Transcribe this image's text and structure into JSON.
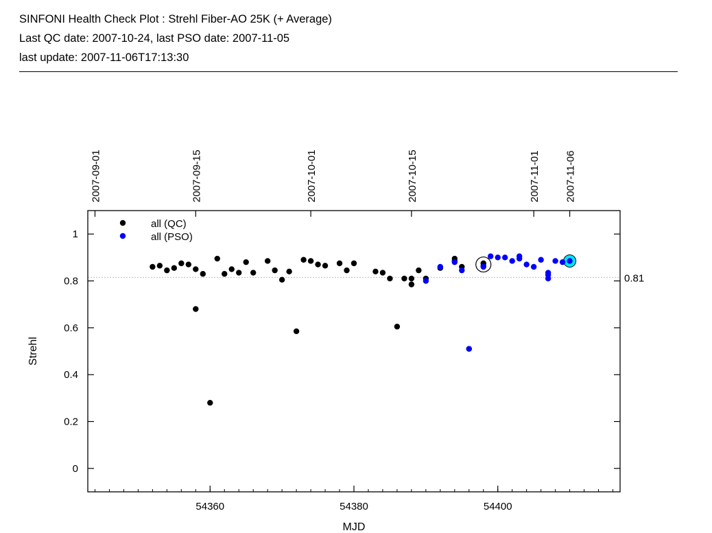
{
  "header": {
    "title": "SINFONI Health Check Plot : Strehl Fiber-AO 25K (+ Average)",
    "qc_line": "Last QC date: 2007-10-24, last PSO date: 2007-11-05",
    "update_line": "last update: 2007-11-06T17:13:30"
  },
  "chart_data": {
    "type": "scatter",
    "xlabel": "MJD",
    "ylabel": "Strehl",
    "xlim": [
      54343,
      54417
    ],
    "ylim": [
      -0.1,
      1.1
    ],
    "x_ticks": [
      54360,
      54380,
      54400
    ],
    "y_ticks": [
      0,
      0.2,
      0.4,
      0.6,
      0.8,
      1
    ],
    "y_tick_labels": [
      "0",
      "0.2",
      "0.4",
      "0.6",
      "0.8",
      "1"
    ],
    "date_ticks": [
      {
        "label": "2007-09-01",
        "mjd": 54344
      },
      {
        "label": "2007-09-15",
        "mjd": 54358
      },
      {
        "label": "2007-10-01",
        "mjd": 54374
      },
      {
        "label": "2007-10-15",
        "mjd": 54388
      },
      {
        "label": "2007-11-01",
        "mjd": 54405
      },
      {
        "label": "2007-11-06",
        "mjd": 54410
      }
    ],
    "average": {
      "value": 0.815,
      "label": "0.81"
    },
    "legend": {
      "position": "top-left"
    },
    "series": [
      {
        "name": "all (QC)",
        "color": "#000000",
        "points": [
          [
            54352,
            0.86
          ],
          [
            54353,
            0.865
          ],
          [
            54354,
            0.845
          ],
          [
            54355,
            0.855
          ],
          [
            54356,
            0.875
          ],
          [
            54357,
            0.87
          ],
          [
            54358,
            0.85
          ],
          [
            54358,
            0.68
          ],
          [
            54359,
            0.83
          ],
          [
            54360,
            0.28
          ],
          [
            54361,
            0.895
          ],
          [
            54362,
            0.83
          ],
          [
            54363,
            0.85
          ],
          [
            54364,
            0.835
          ],
          [
            54365,
            0.88
          ],
          [
            54366,
            0.835
          ],
          [
            54368,
            0.885
          ],
          [
            54369,
            0.845
          ],
          [
            54370,
            0.805
          ],
          [
            54371,
            0.84
          ],
          [
            54372,
            0.585
          ],
          [
            54373,
            0.89
          ],
          [
            54374,
            0.885
          ],
          [
            54375,
            0.87
          ],
          [
            54376,
            0.865
          ],
          [
            54378,
            0.875
          ],
          [
            54379,
            0.845
          ],
          [
            54380,
            0.875
          ],
          [
            54383,
            0.84
          ],
          [
            54384,
            0.835
          ],
          [
            54385,
            0.81
          ],
          [
            54386,
            0.605
          ],
          [
            54387,
            0.81
          ],
          [
            54388,
            0.81
          ],
          [
            54388,
            0.785
          ],
          [
            54389,
            0.845
          ],
          [
            54390,
            0.81
          ],
          [
            54392,
            0.855
          ],
          [
            54394,
            0.895
          ],
          [
            54394,
            0.885
          ],
          [
            54395,
            0.86
          ],
          [
            54396,
            0.51
          ],
          [
            54398,
            0.875
          ],
          [
            54398,
            0.865
          ]
        ]
      },
      {
        "name": "all (PSO)",
        "color": "#0000ff",
        "points": [
          [
            54390,
            0.8
          ],
          [
            54392,
            0.86
          ],
          [
            54394,
            0.88
          ],
          [
            54395,
            0.845
          ],
          [
            54396,
            0.51
          ],
          [
            54398,
            0.86
          ],
          [
            54399,
            0.905
          ],
          [
            54400,
            0.9
          ],
          [
            54401,
            0.9
          ],
          [
            54402,
            0.885
          ],
          [
            54403,
            0.905
          ],
          [
            54403,
            0.895
          ],
          [
            54404,
            0.87
          ],
          [
            54405,
            0.86
          ],
          [
            54406,
            0.89
          ],
          [
            54407,
            0.835
          ],
          [
            54407,
            0.825
          ],
          [
            54407,
            0.81
          ],
          [
            54408,
            0.885
          ],
          [
            54409,
            0.88
          ],
          [
            54410,
            0.885
          ]
        ]
      }
    ],
    "highlights": [
      {
        "x": 54398,
        "y": 0.87,
        "style": "open-circle"
      },
      {
        "x": 54410,
        "y": 0.885,
        "style": "cyan-circle",
        "color": "#00e5ff"
      }
    ]
  }
}
